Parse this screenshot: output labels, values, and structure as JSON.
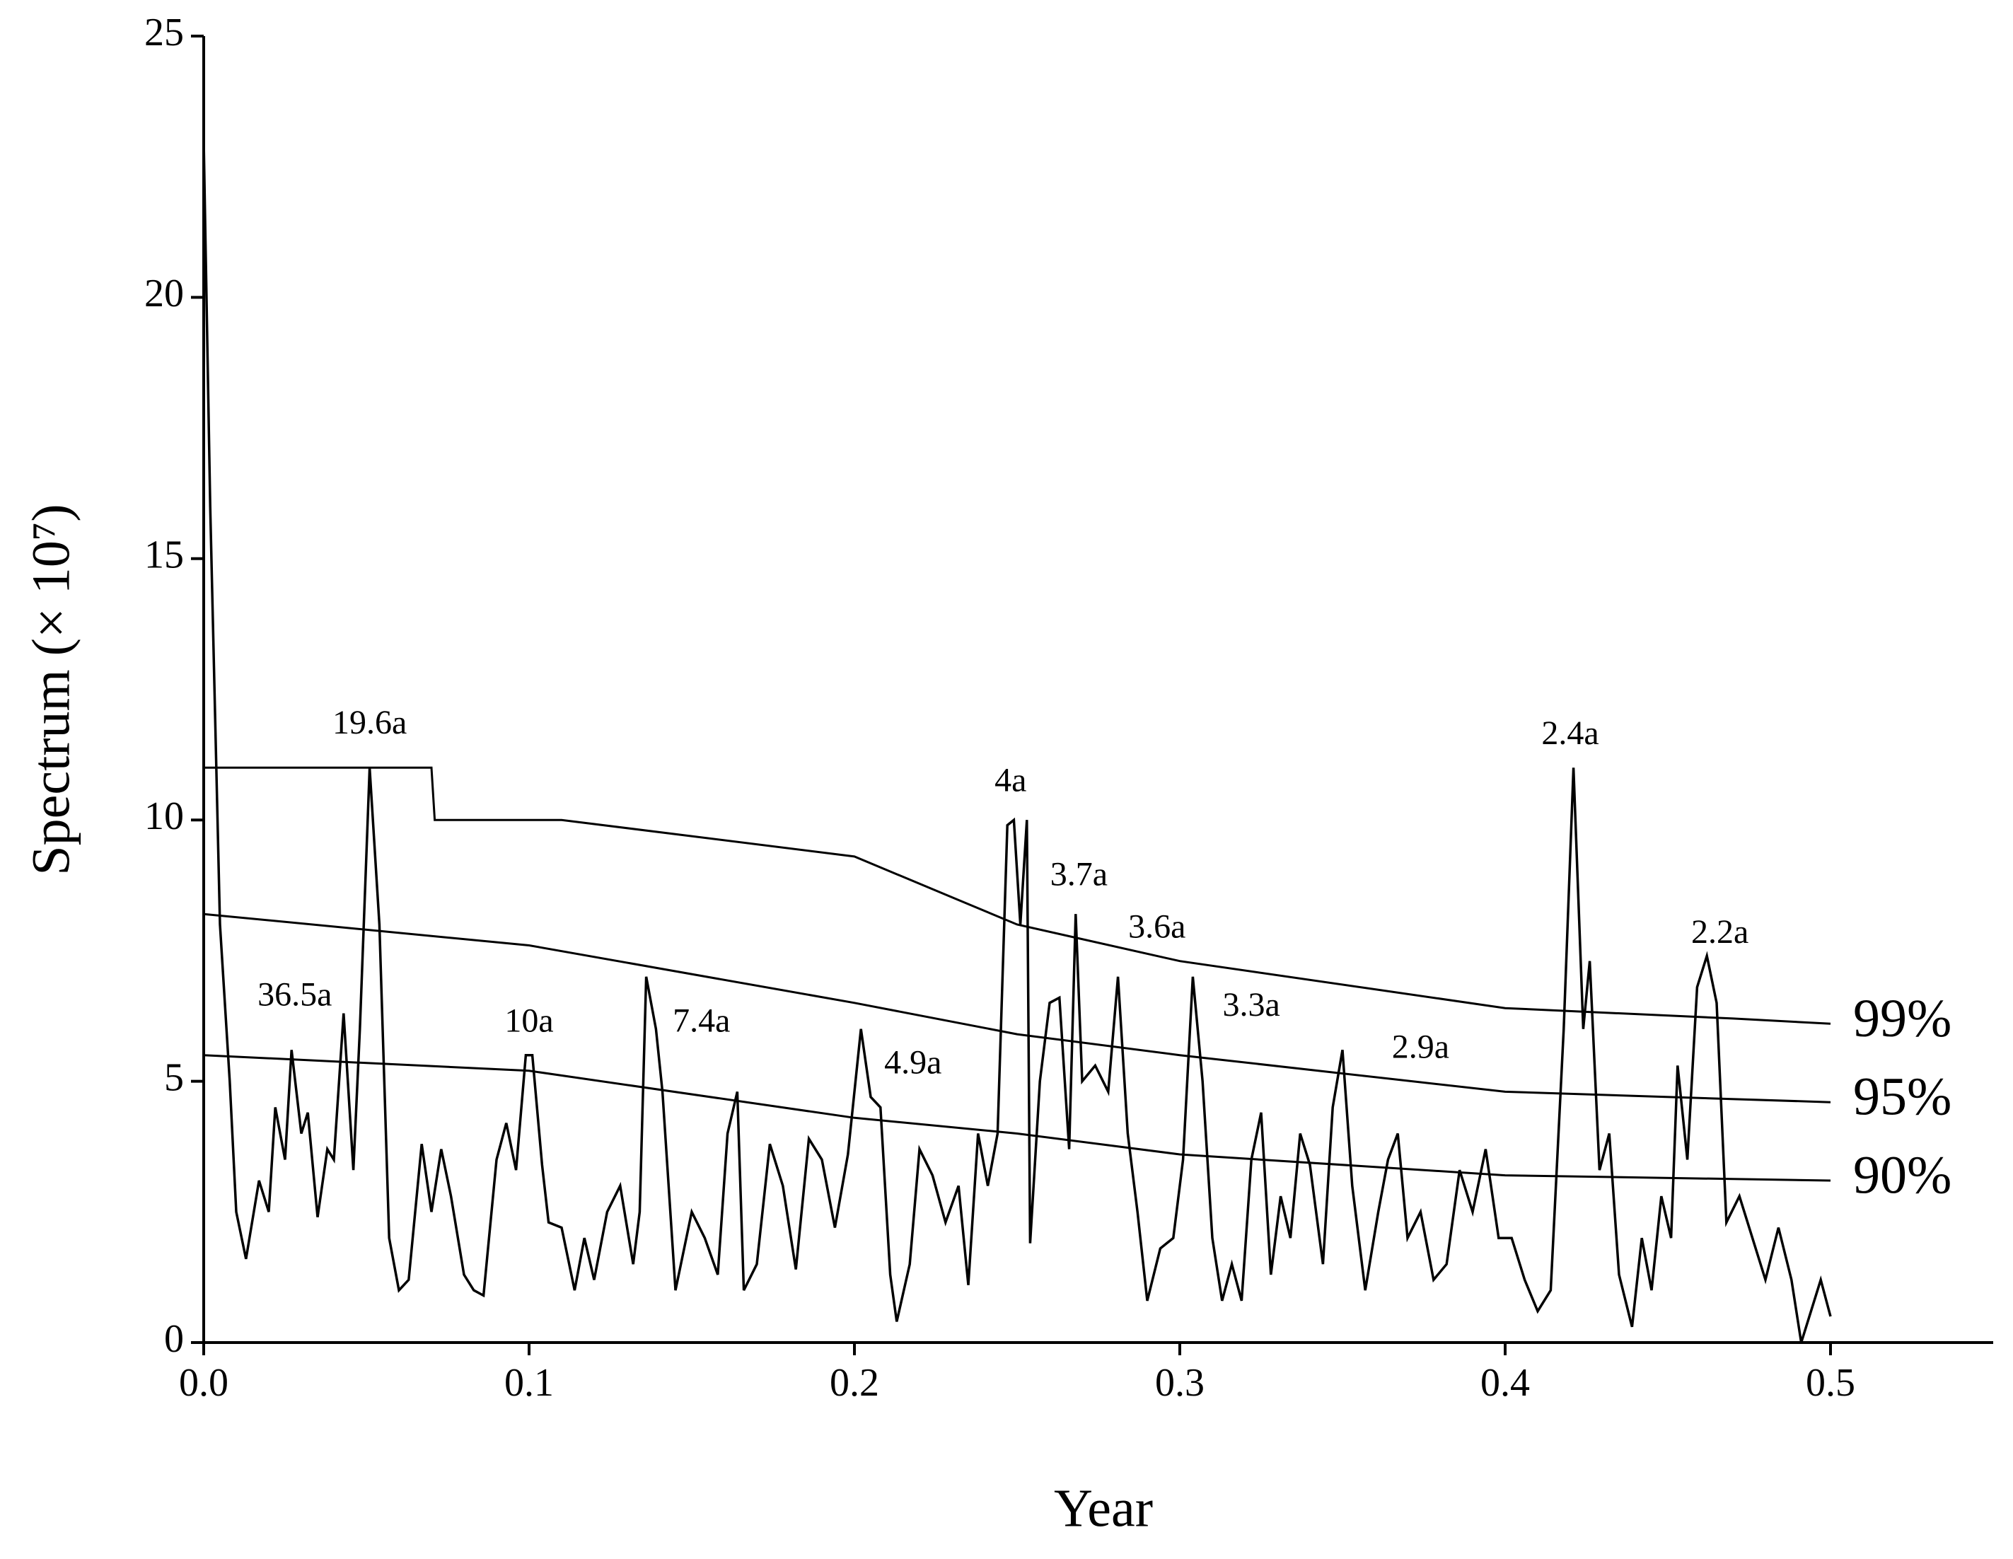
{
  "chart_data": {
    "type": "line",
    "x_label": "Year",
    "y_label": "Spectrum (× 10⁷)",
    "xlim": [
      0,
      0.55
    ],
    "ylim": [
      0,
      25
    ],
    "xticks": [
      {
        "value": 0,
        "label": "0.0"
      },
      0.1,
      0.2,
      0.3,
      0.4,
      0.5
    ],
    "yticks": [
      0,
      5,
      10,
      15,
      20,
      25
    ],
    "grid": false,
    "series": [
      {
        "color": "#000000",
        "x": [
          0,
          0.002,
          0.005,
          0.008,
          0.01,
          0.013,
          0.017,
          0.02,
          0.022,
          0.025,
          0.027,
          0.03,
          0.032,
          0.035,
          0.038,
          0.04,
          0.043,
          0.046,
          0.048,
          0.051,
          0.054,
          0.057,
          0.06,
          0.063,
          0.067,
          0.07,
          0.073,
          0.076,
          0.08,
          0.083,
          0.086,
          0.09,
          0.093,
          0.096,
          0.099,
          0.101,
          0.104,
          0.106,
          0.11,
          0.114,
          0.117,
          0.12,
          0.124,
          0.128,
          0.132,
          0.134,
          0.136,
          0.139,
          0.141,
          0.145,
          0.15,
          0.154,
          0.158,
          0.161,
          0.164,
          0.166,
          0.17,
          0.174,
          0.178,
          0.182,
          0.186,
          0.19,
          0.194,
          0.198,
          0.202,
          0.205,
          0.208,
          0.211,
          0.213,
          0.217,
          0.22,
          0.224,
          0.228,
          0.232,
          0.235,
          0.238,
          0.241,
          0.244,
          0.247,
          0.249,
          0.251,
          0.253,
          0.254,
          0.257,
          0.26,
          0.263,
          0.266,
          0.268,
          0.27,
          0.274,
          0.278,
          0.281,
          0.284,
          0.287,
          0.29,
          0.294,
          0.298,
          0.301,
          0.304,
          0.307,
          0.31,
          0.313,
          0.316,
          0.319,
          0.322,
          0.325,
          0.328,
          0.331,
          0.334,
          0.337,
          0.34,
          0.344,
          0.347,
          0.35,
          0.353,
          0.357,
          0.361,
          0.364,
          0.367,
          0.37,
          0.374,
          0.378,
          0.382,
          0.386,
          0.39,
          0.394,
          0.398,
          0.402,
          0.406,
          0.41,
          0.414,
          0.418,
          0.421,
          0.424,
          0.426,
          0.429,
          0.432,
          0.435,
          0.439,
          0.442,
          0.445,
          0.448,
          0.451,
          0.453,
          0.456,
          0.459,
          0.462,
          0.465,
          0.468,
          0.472,
          0.476,
          0.48,
          0.484,
          0.488,
          0.491,
          0.494,
          0.497,
          0.5
        ],
        "values": [
          23,
          16,
          8,
          5,
          2.5,
          1.6,
          3.1,
          2.5,
          4.5,
          3.5,
          5.6,
          4,
          4.4,
          2.4,
          3.7,
          3.5,
          6.3,
          3.3,
          6,
          11,
          8,
          2,
          1,
          1.2,
          3.8,
          2.5,
          3.7,
          2.8,
          1.3,
          1,
          0.9,
          3.5,
          4.2,
          3.3,
          5.5,
          5.5,
          3.4,
          2.3,
          2.2,
          1,
          2,
          1.2,
          2.5,
          3,
          1.5,
          2.5,
          7,
          6,
          4.8,
          1,
          2.5,
          2,
          1.3,
          4,
          4.8,
          1,
          1.5,
          3.8,
          3,
          1.4,
          3.9,
          3.5,
          2.2,
          3.6,
          6,
          4.7,
          4.5,
          1.3,
          0.4,
          1.5,
          3.7,
          3.2,
          2.3,
          3,
          1.1,
          4,
          3,
          4,
          9.9,
          10,
          8,
          10,
          1.9,
          5,
          6.5,
          6.6,
          3.7,
          8.2,
          5,
          5.3,
          4.8,
          7,
          4,
          2.5,
          0.8,
          1.8,
          2,
          3.5,
          7,
          5,
          2,
          0.8,
          1.5,
          0.8,
          3.5,
          4.4,
          1.3,
          2.8,
          2,
          4,
          3.4,
          1.5,
          4.5,
          5.6,
          3,
          1,
          2.5,
          3.5,
          4,
          2,
          2.5,
          1.2,
          1.5,
          3.3,
          2.5,
          3.7,
          2,
          2,
          1.2,
          0.6,
          1,
          6,
          11,
          6,
          7.3,
          3.3,
          4,
          1.3,
          0.3,
          2,
          1,
          2.8,
          2,
          5.3,
          3.5,
          6.8,
          7.4,
          6.5,
          2.3,
          2.8,
          2,
          1.2,
          2.2,
          1.2,
          0,
          0.6,
          1.2,
          0.5
        ]
      },
      {
        "name": "99%",
        "color": "#000000",
        "x": [
          0,
          0.07,
          0.071,
          0.11,
          0.2,
          0.25,
          0.3,
          0.4,
          0.47,
          0.5
        ],
        "values": [
          11,
          11,
          10,
          10,
          9.3,
          8.0,
          7.3,
          6.4,
          6.2,
          6.1
        ]
      },
      {
        "name": "95%",
        "color": "#000000",
        "x": [
          0,
          0.1,
          0.2,
          0.25,
          0.3,
          0.4,
          0.5
        ],
        "values": [
          8.2,
          7.6,
          6.5,
          5.9,
          5.5,
          4.8,
          4.6
        ]
      },
      {
        "name": "90%",
        "color": "#000000",
        "x": [
          0,
          0.1,
          0.2,
          0.25,
          0.3,
          0.4,
          0.5
        ],
        "values": [
          5.5,
          5.2,
          4.3,
          4.0,
          3.6,
          3.2,
          3.1
        ]
      }
    ],
    "annotations": [
      {
        "text": "36.5a",
        "x": 0.028,
        "y": 6.6
      },
      {
        "text": "19.6a",
        "x": 0.051,
        "y": 11.8
      },
      {
        "text": "10a",
        "x": 0.1,
        "y": 6.1
      },
      {
        "text": "7.4a",
        "x": 0.153,
        "y": 6.1
      },
      {
        "text": "4.9a",
        "x": 0.218,
        "y": 5.3
      },
      {
        "text": "4a",
        "x": 0.248,
        "y": 10.7
      },
      {
        "text": "3.7a",
        "x": 0.269,
        "y": 8.9
      },
      {
        "text": "3.6a",
        "x": 0.293,
        "y": 7.9
      },
      {
        "text": "3.3a",
        "x": 0.322,
        "y": 6.4
      },
      {
        "text": "2.9a",
        "x": 0.374,
        "y": 5.6
      },
      {
        "text": "2.4a",
        "x": 0.42,
        "y": 11.6
      },
      {
        "text": "2.2a",
        "x": 0.466,
        "y": 7.8
      }
    ]
  }
}
